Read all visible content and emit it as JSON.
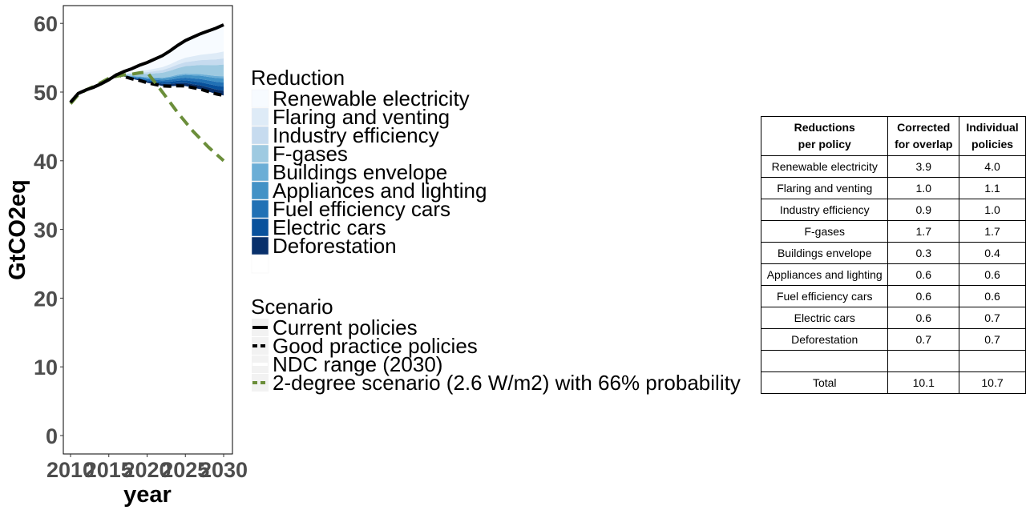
{
  "chart_data": {
    "type": "area",
    "xlabel": "year",
    "ylabel": "GtCO2eq",
    "xlim": [
      2010,
      2030
    ],
    "ylim": [
      0,
      62
    ],
    "x_ticks": [
      "2010",
      "2015",
      "2020",
      "2025",
      "2030"
    ],
    "y_ticks": [
      "0",
      "10",
      "20",
      "30",
      "40",
      "50",
      "60"
    ],
    "grid": false,
    "years": [
      2010,
      2011,
      2012,
      2013,
      2014,
      2015,
      2016,
      2017,
      2018,
      2019,
      2020,
      2021,
      2022,
      2023,
      2024,
      2025,
      2026,
      2027,
      2028,
      2029,
      2030
    ],
    "current_policies": [
      48.5,
      49.8,
      50.3,
      50.7,
      51.2,
      51.8,
      52.5,
      53.0,
      53.4,
      53.9,
      54.3,
      54.8,
      55.3,
      56.0,
      56.8,
      57.5,
      58.0,
      58.5,
      58.9,
      59.3,
      59.8
    ],
    "reduction_start_year": 2016,
    "reduction": {
      "title": "Reduction",
      "categories": [
        "Renewable electricity",
        "Flaring and venting",
        "Industry efficiency",
        "F-gases",
        "Buildings envelope",
        "Appliances and lighting",
        "Fuel efficiency cars",
        "Electric cars",
        "Deforestation"
      ],
      "colors": [
        "#f7fbff",
        "#deebf7",
        "#c6dbef",
        "#9ecae1",
        "#6baed6",
        "#4292c6",
        "#2171b5",
        "#08519c",
        "#08306b"
      ],
      "values_2030": [
        3.9,
        1.0,
        0.9,
        1.7,
        0.3,
        0.6,
        0.6,
        0.6,
        0.7
      ]
    },
    "scenario": {
      "title": "Scenario",
      "items": [
        {
          "label": "Current policies",
          "style": "solid",
          "color": "#000000"
        },
        {
          "label": "Good practice policies",
          "style": "dashed",
          "color": "#000000"
        },
        {
          "label": "NDC range (2030)",
          "style": "solid",
          "color": "#ffffff"
        },
        {
          "label": "2-degree scenario (2.6 W/m2) with 66% probability",
          "style": "dashed",
          "color": "#6b8e3a"
        }
      ]
    },
    "two_degree": {
      "years": [
        2010,
        2011,
        2012,
        2013,
        2014,
        2015,
        2016,
        2017,
        2018,
        2019,
        2020,
        2022,
        2024,
        2026,
        2028,
        2030
      ],
      "values": [
        48.3,
        49.6,
        50.3,
        50.8,
        51.4,
        52.0,
        52.3,
        52.5,
        52.6,
        52.8,
        52.9,
        50.0,
        47.0,
        44.3,
        42.0,
        40.0
      ]
    }
  },
  "table": {
    "headers": [
      [
        "Reductions",
        "per policy"
      ],
      [
        "Corrected",
        "for overlap"
      ],
      [
        "Individual",
        "policies"
      ]
    ],
    "rows": [
      [
        "Renewable electricity",
        "3.9",
        "4.0"
      ],
      [
        "Flaring and venting",
        "1.0",
        "1.1"
      ],
      [
        "Industry efficiency",
        "0.9",
        "1.0"
      ],
      [
        "F-gases",
        "1.7",
        "1.7"
      ],
      [
        "Buildings envelope",
        "0.3",
        "0.4"
      ],
      [
        "Appliances and lighting",
        "0.6",
        "0.6"
      ],
      [
        "Fuel efficiency cars",
        "0.6",
        "0.6"
      ],
      [
        "Electric cars",
        "0.6",
        "0.7"
      ],
      [
        "Deforestation",
        "0.7",
        "0.7"
      ],
      [
        "",
        "",
        ""
      ],
      [
        "Total",
        "10.1",
        "10.7"
      ]
    ]
  }
}
